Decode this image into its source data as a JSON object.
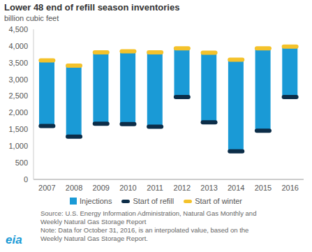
{
  "chart_data": {
    "type": "floating_bar",
    "title": "Lower 48 end of refill season inventories",
    "subtitle": "billion cubic feet",
    "categories": [
      "2007",
      "2008",
      "2009",
      "2010",
      "2011",
      "2012",
      "2013",
      "2014",
      "2015",
      "2016"
    ],
    "series": [
      {
        "name": "Injections",
        "type": "range",
        "color": "#1a9ad6",
        "values": [
          [
            1600,
            3570
          ],
          [
            1280,
            3410
          ],
          [
            1670,
            3810
          ],
          [
            1660,
            3840
          ],
          [
            1580,
            3810
          ],
          [
            2470,
            3930
          ],
          [
            1710,
            3800
          ],
          [
            840,
            3590
          ],
          [
            1460,
            3930
          ],
          [
            2470,
            3980
          ]
        ]
      },
      {
        "name": "Start of refill",
        "type": "marker",
        "color": "#0c2d48",
        "values": [
          1600,
          1280,
          1670,
          1660,
          1580,
          2470,
          1710,
          840,
          1460,
          2470
        ]
      },
      {
        "name": "Start of winter",
        "type": "marker",
        "color": "#f4c22b",
        "values": [
          3570,
          3410,
          3810,
          3840,
          3810,
          3930,
          3800,
          3590,
          3930,
          3980
        ]
      }
    ],
    "ylim": [
      0,
      4500
    ],
    "yticks": [
      0,
      500,
      {
        "value": 1000,
        "label": "1,000"
      },
      {
        "value": 1500,
        "label": "1,500"
      },
      {
        "value": 2000,
        "label": "2,000"
      },
      {
        "value": 2500,
        "label": "2,500"
      },
      {
        "value": 3000,
        "label": "3,000"
      },
      {
        "value": 3500,
        "label": "3,500"
      },
      {
        "value": 4000,
        "label": "4,000"
      },
      {
        "value": 4500,
        "label": "4,500"
      }
    ],
    "grid": false,
    "legend": "bottom",
    "notes": [
      "Source: U.S. Energy Information Administration, Natural Gas Monthly and",
      "Weekly Natural Gas Storage Report",
      "Note: Data for October 31, 2016, is an interpolated value, based on the",
      "Weekly Natural Gas Storage Report."
    ],
    "logo": "eia"
  }
}
